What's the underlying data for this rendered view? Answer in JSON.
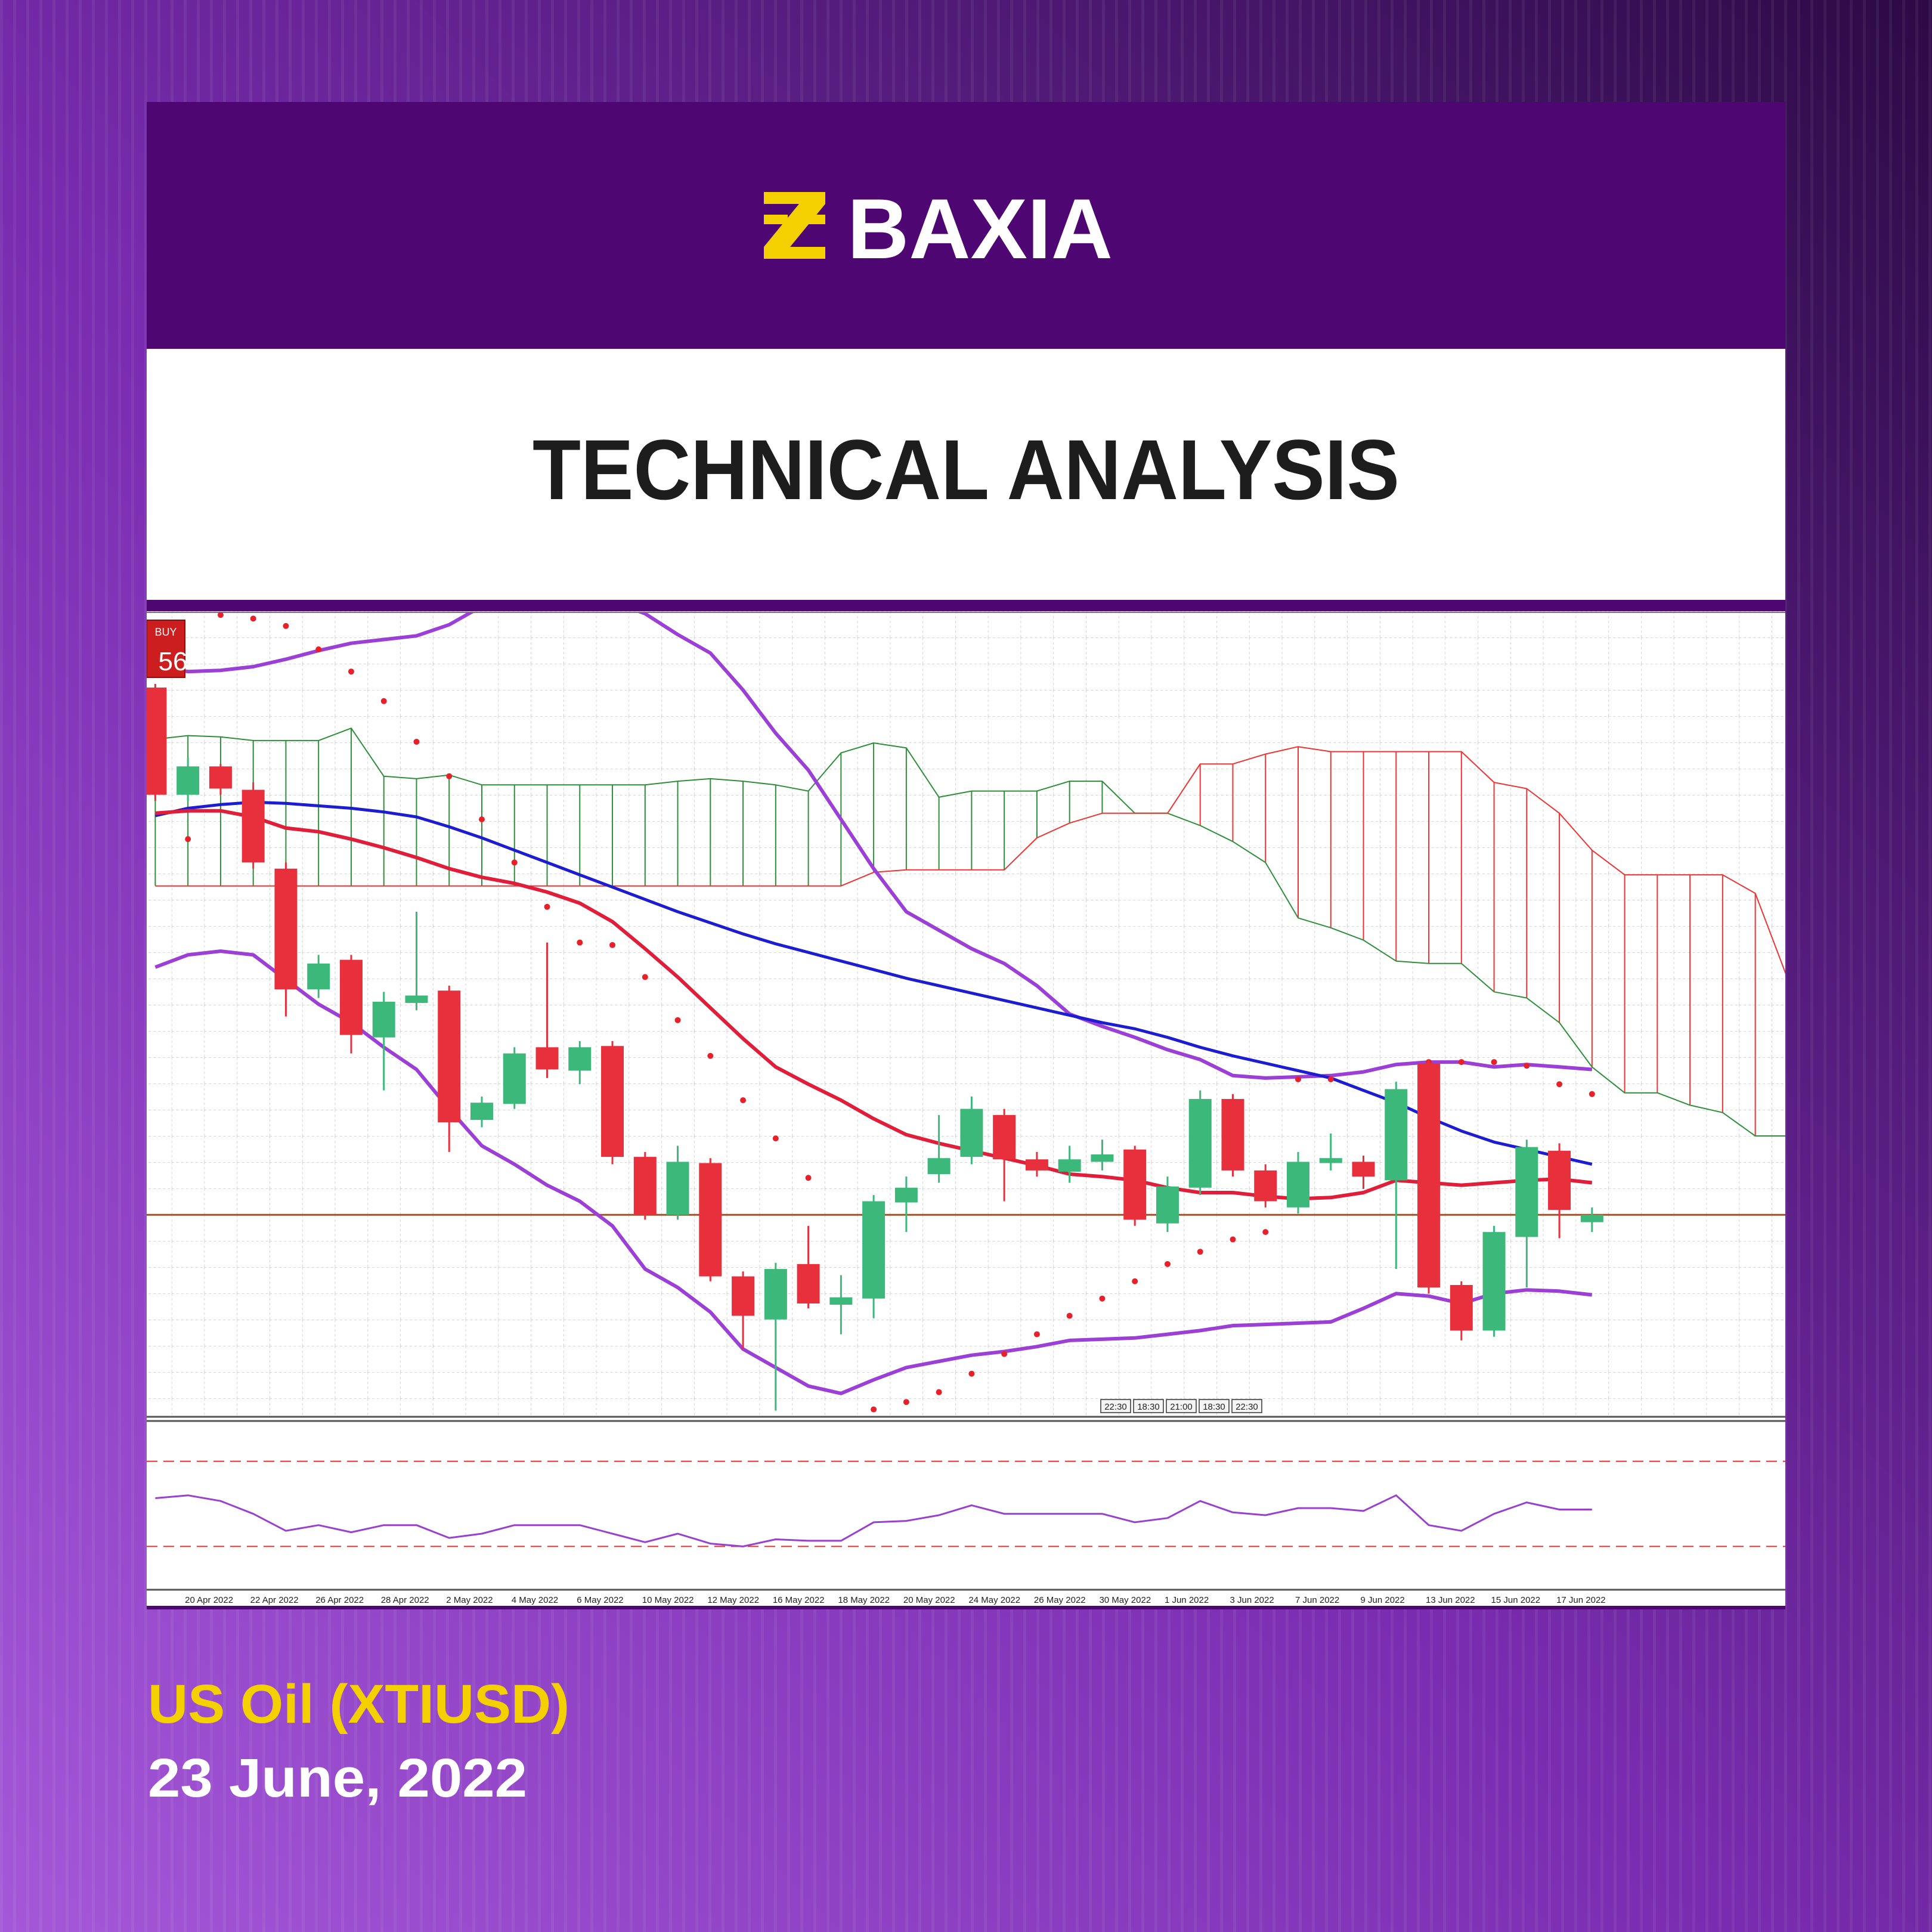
{
  "header": {
    "brand": "BAXIA",
    "title": "TECHNICAL ANALYSIS"
  },
  "footer": {
    "instrument": "US Oil (XTIUSD)",
    "date": "23 June, 2022"
  },
  "chart_data": {
    "type": "candlestick",
    "ylim": [
      0,
      654
    ],
    "categories": [
      null,
      "20 Apr 2022",
      null,
      "22 Apr 2022",
      null,
      "26 Apr 2022",
      null,
      "28 Apr 2022",
      null,
      "2 May 2022",
      null,
      "4 May 2022",
      null,
      "6 May 2022",
      null,
      "10 May 2022",
      null,
      "12 May 2022",
      null,
      "16 May 2022",
      null,
      "18 May 2022",
      null,
      "20 May 2022",
      null,
      "24 May 2022",
      null,
      "26 May 2022",
      null,
      "30 May 2022",
      null,
      "1 Jun 2022",
      null,
      "3 Jun 2022",
      null,
      "7 Jun 2022",
      null,
      "9 Jun 2022",
      null,
      "13 Jun 2022",
      null,
      "15 Jun 2022",
      null,
      "17 Jun 2022",
      null,
      null,
      null,
      null,
      null,
      null,
      null
    ],
    "up_color": "#3bb87a",
    "down_color": "#e8303c",
    "open": [
      592,
      505,
      528,
      509,
      445,
      347,
      371,
      308,
      336,
      346,
      241,
      254,
      300,
      281,
      301,
      211,
      164,
      206,
      114,
      79,
      124,
      91,
      96,
      174,
      197,
      211,
      245,
      209,
      199,
      207,
      217,
      157,
      186,
      258,
      200,
      170,
      206,
      207,
      192,
      287,
      107,
      70,
      146,
      216,
      158,
      null,
      null,
      null,
      null,
      null,
      null
    ],
    "high": [
      595,
      535,
      530,
      515,
      450,
      375,
      375,
      345,
      410,
      350,
      260,
      300,
      385,
      305,
      305,
      215,
      220,
      210,
      118,
      125,
      155,
      115,
      180,
      195,
      245,
      260,
      250,
      215,
      220,
      225,
      220,
      195,
      265,
      262,
      205,
      215,
      230,
      212,
      272,
      290,
      110,
      155,
      225,
      222,
      170,
      null,
      null,
      null,
      null,
      null,
      null
    ],
    "low": [
      500,
      500,
      505,
      445,
      325,
      340,
      295,
      265,
      330,
      215,
      235,
      250,
      275,
      270,
      205,
      160,
      160,
      110,
      55,
      5,
      88,
      67,
      80,
      150,
      190,
      205,
      175,
      195,
      190,
      200,
      155,
      150,
      180,
      195,
      170,
      165,
      200,
      185,
      120,
      100,
      62,
      65,
      105,
      145,
      150,
      null,
      null,
      null,
      null,
      null,
      null
    ],
    "close": [
      505,
      528,
      510,
      450,
      347,
      368,
      310,
      337,
      342,
      239,
      255,
      295,
      282,
      300,
      211,
      164,
      207,
      114,
      82,
      120,
      92,
      97,
      175,
      186,
      210,
      250,
      209,
      200,
      209,
      213,
      160,
      187,
      258,
      200,
      175,
      207,
      210,
      195,
      266,
      105,
      70,
      150,
      219,
      168,
      164,
      null,
      null,
      null,
      null,
      null,
      null
    ],
    "cloud": {
      "span_a": {
        "color": "#2e8f3a",
        "values": [
          550,
          553,
          552,
          549,
          549,
          549,
          559,
          520,
          518,
          521,
          513,
          513,
          513,
          513,
          513,
          513,
          516,
          518,
          516,
          513,
          508,
          539,
          547,
          543,
          503,
          508,
          508,
          508,
          516,
          516,
          490,
          490,
          480,
          467,
          450,
          405,
          397,
          387,
          370,
          368,
          368,
          345,
          340,
          320,
          284,
          263,
          263,
          253,
          247,
          228,
          228
        ]
      },
      "span_b": {
        "color": "#ee3434",
        "values": [
          431,
          431,
          431,
          431,
          431,
          431,
          431,
          431,
          431,
          431,
          431,
          431,
          431,
          431,
          431,
          431,
          431,
          431,
          431,
          431,
          431,
          431,
          442,
          444,
          444,
          444,
          444,
          470,
          482,
          490,
          490,
          490,
          530,
          530,
          538,
          544,
          540,
          540,
          540,
          540,
          540,
          515,
          510,
          490,
          460,
          440,
          440,
          440,
          440,
          425,
          355
        ]
      }
    },
    "level": 164,
    "level_color": "#a0522d",
    "overlays": [
      {
        "color": "#9b3fd6",
        "width": 6,
        "values": [
          609,
          605,
          606,
          609,
          615,
          622,
          628,
          631,
          634,
          643,
          658,
          665,
          670,
          668,
          662,
          652,
          635,
          620,
          590,
          555,
          525,
          485,
          445,
          410,
          395,
          380,
          368,
          350,
          327,
          317,
          308,
          298,
          290,
          277,
          275,
          276,
          277,
          280,
          286,
          288,
          288,
          284,
          286,
          284,
          282,
          null,
          null,
          null,
          null,
          null,
          null
        ]
      },
      {
        "color": "#9b3fd6",
        "width": 6,
        "values": [
          365,
          375,
          378,
          375,
          355,
          335,
          320,
          300,
          282,
          250,
          220,
          205,
          188,
          175,
          155,
          120,
          105,
          85,
          55,
          40,
          25,
          19,
          30,
          40,
          45,
          50,
          53,
          57,
          62,
          63,
          64,
          67,
          70,
          74,
          75,
          76,
          77,
          88,
          100,
          98,
          92,
          100,
          103,
          102,
          99,
          null,
          null,
          null,
          null,
          null,
          null
        ]
      },
      {
        "color": "#1c1cd2",
        "width": 5,
        "values": [
          488,
          494,
          497,
          499,
          498,
          496,
          494,
          491,
          487,
          479,
          470,
          460,
          450,
          440,
          430,
          420,
          410,
          401,
          392,
          384,
          377,
          370,
          363,
          356,
          350,
          344,
          338,
          332,
          326,
          320,
          315,
          308,
          300,
          293,
          287,
          281,
          275,
          265,
          255,
          243,
          232,
          223,
          217,
          211,
          205,
          null,
          null,
          null,
          null,
          null,
          null
        ]
      },
      {
        "color": "#e01e3a",
        "width": 6,
        "values": [
          490,
          492,
          492,
          487,
          478,
          475,
          469,
          462,
          454,
          445,
          438,
          433,
          426,
          417,
          402,
          380,
          357,
          332,
          307,
          284,
          270,
          257,
          242,
          229,
          222,
          216,
          210,
          204,
          197,
          195,
          192,
          186,
          182,
          182,
          179,
          177,
          178,
          182,
          192,
          190,
          188,
          190,
          192,
          193,
          190,
          null,
          null,
          null,
          null,
          null,
          null
        ]
      }
    ],
    "sar": {
      "color": "#e8202a",
      "values": [
        null,
        469,
        651,
        648,
        642,
        623,
        605,
        581,
        548,
        520,
        485,
        450,
        414,
        385,
        383,
        357,
        322,
        293,
        257,
        226,
        194,
        null,
        6,
        12,
        20,
        35,
        51,
        67,
        82,
        96,
        110,
        124,
        134,
        144,
        150,
        274,
        274,
        null,
        null,
        288,
        288,
        288,
        285,
        270,
        262,
        null,
        null,
        null,
        null,
        null,
        null
      ]
    },
    "oscillator": {
      "color": "#9a40d0",
      "ylim": [
        0,
        100
      ],
      "levels": [
        80,
        20
      ],
      "level_color": "#e83030",
      "values": [
        54,
        56,
        52,
        43,
        31,
        35,
        30,
        35,
        35,
        26,
        29,
        35,
        35,
        35,
        29,
        23,
        29,
        22,
        20,
        25,
        24,
        24,
        37,
        38,
        42,
        49,
        43,
        43,
        43,
        43,
        37,
        40,
        52,
        44,
        42,
        47,
        47,
        45,
        56,
        35,
        31,
        43,
        51,
        46,
        46,
        null,
        null,
        null,
        null,
        null,
        null
      ]
    },
    "buy_label": "BUY",
    "price_badge": "56",
    "time_markers": [
      "22:30",
      "18:30",
      "21:00",
      "18:30",
      "22:30"
    ]
  }
}
